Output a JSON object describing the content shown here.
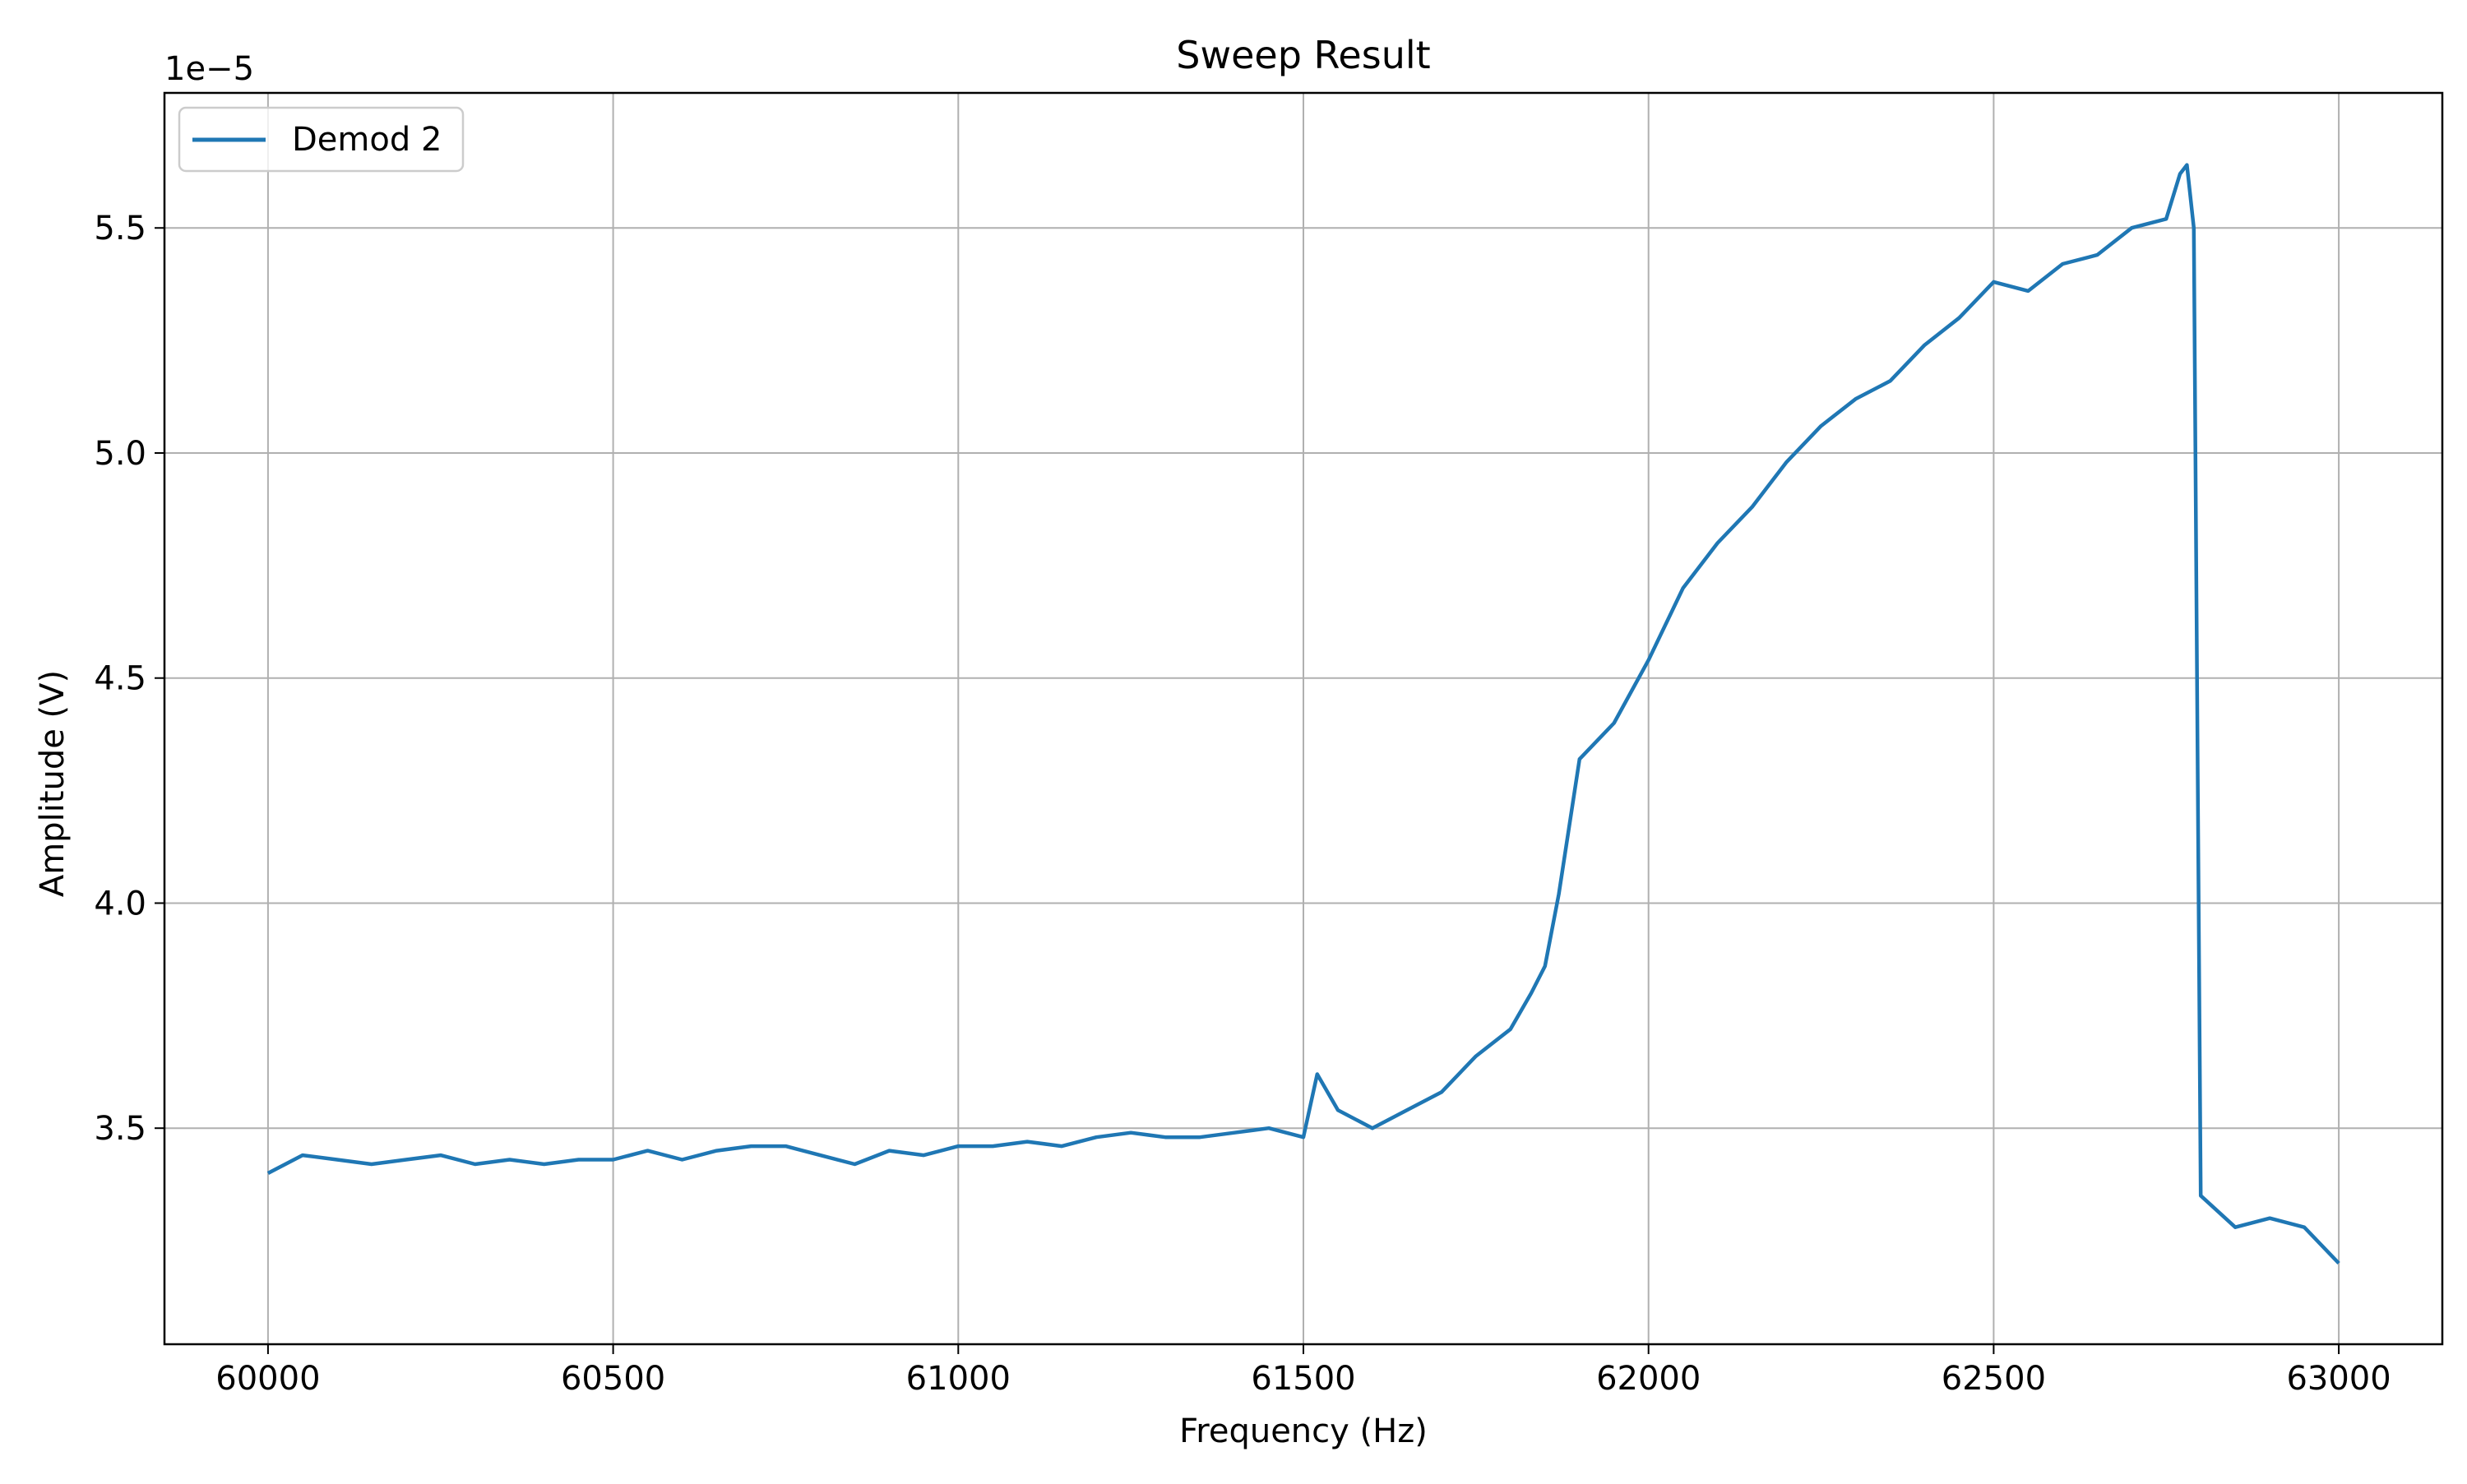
{
  "chart_data": {
    "type": "line",
    "title": "Sweep Result",
    "xlabel": "Frequency (Hz)",
    "ylabel": "Amplitude (V)",
    "y_offset_label": "1e−5",
    "y_scale_factor": 1e-05,
    "xlim": [
      59850,
      63150
    ],
    "ylim": [
      3.02,
      5.8
    ],
    "xticks": [
      60000,
      60500,
      61000,
      61500,
      62000,
      62500,
      63000
    ],
    "xtick_labels": [
      "60000",
      "60500",
      "61000",
      "61500",
      "62000",
      "62500",
      "63000"
    ],
    "yticks": [
      3.5,
      4.0,
      4.5,
      5.0,
      5.5
    ],
    "ytick_labels": [
      "3.5",
      "4.0",
      "4.5",
      "5.0",
      "5.5"
    ],
    "grid": true,
    "legend_position": "top-left",
    "series": [
      {
        "name": "Demod 2",
        "color": "#1f77b4",
        "x": [
          60000,
          60050,
          60100,
          60150,
          60200,
          60250,
          60300,
          60350,
          60400,
          60450,
          60500,
          60550,
          60600,
          60650,
          60700,
          60750,
          60800,
          60850,
          60900,
          60950,
          61000,
          61050,
          61100,
          61150,
          61200,
          61250,
          61300,
          61350,
          61400,
          61450,
          61500,
          61520,
          61550,
          61600,
          61650,
          61700,
          61750,
          61800,
          61830,
          61850,
          61870,
          61900,
          61950,
          62000,
          62050,
          62100,
          62150,
          62200,
          62250,
          62300,
          62350,
          62400,
          62450,
          62500,
          62550,
          62600,
          62650,
          62700,
          62750,
          62770,
          62780,
          62790,
          62800,
          62850,
          62900,
          62950,
          63000
        ],
        "y": [
          3.4,
          3.44,
          3.43,
          3.42,
          3.43,
          3.44,
          3.42,
          3.43,
          3.42,
          3.43,
          3.43,
          3.45,
          3.43,
          3.45,
          3.46,
          3.46,
          3.44,
          3.42,
          3.45,
          3.44,
          3.46,
          3.46,
          3.47,
          3.46,
          3.48,
          3.49,
          3.48,
          3.48,
          3.49,
          3.5,
          3.48,
          3.62,
          3.54,
          3.5,
          3.54,
          3.58,
          3.66,
          3.72,
          3.8,
          3.86,
          4.02,
          4.32,
          4.4,
          4.54,
          4.7,
          4.8,
          4.88,
          4.98,
          5.06,
          5.12,
          5.16,
          5.24,
          5.3,
          5.38,
          5.36,
          5.42,
          5.44,
          5.5,
          5.52,
          5.62,
          5.64,
          5.5,
          3.35,
          3.28,
          3.3,
          3.28,
          3.2
        ]
      }
    ]
  }
}
